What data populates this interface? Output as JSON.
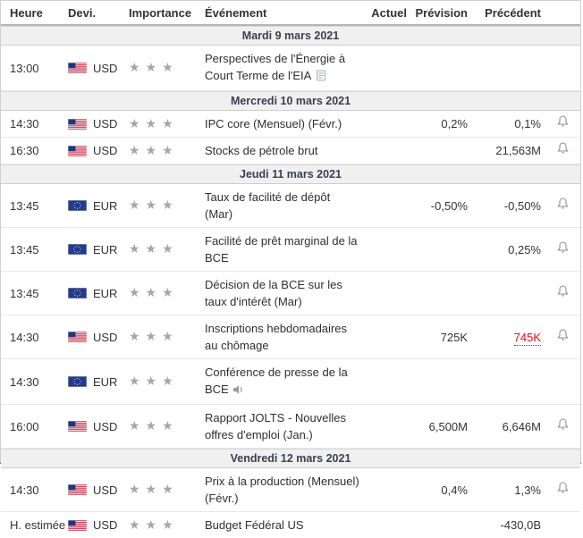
{
  "header": {
    "columns": [
      "Heure",
      "Devi.",
      "Importance",
      "Événement",
      "Actuel",
      "Prévision",
      "Précédent"
    ]
  },
  "colors": {
    "date_row_bg": "#f0f0f0",
    "date_text": "#39404f",
    "star": "#a6a6a6",
    "negative_red": "#dd1111",
    "bell": "#8f8f8f",
    "value_text": "#333333"
  },
  "sections": [
    {
      "date": "Mardi 9 mars 2021",
      "rows": [
        {
          "time": "13:00",
          "flag": "us",
          "currency": "USD",
          "stars": 3,
          "event": "Perspectives de l'Énergie à Court Terme de l'EIA",
          "event_icon": "report",
          "actual": "",
          "forecast": "",
          "previous": "",
          "previous_red": false,
          "bell": false
        }
      ]
    },
    {
      "date": "Mercredi 10 mars 2021",
      "rows": [
        {
          "time": "14:30",
          "flag": "us",
          "currency": "USD",
          "stars": 3,
          "event": "IPC core (Mensuel) (Févr.)",
          "event_icon": "",
          "actual": "",
          "forecast": "0,2%",
          "previous": "0,1%",
          "previous_red": false,
          "bell": true
        },
        {
          "time": "16:30",
          "flag": "us",
          "currency": "USD",
          "stars": 3,
          "event": "Stocks de pétrole brut",
          "event_icon": "",
          "actual": "",
          "forecast": "",
          "previous": "21,563M",
          "previous_red": false,
          "bell": true
        }
      ]
    },
    {
      "date": "Jeudi 11 mars 2021",
      "rows": [
        {
          "time": "13:45",
          "flag": "eu",
          "currency": "EUR",
          "stars": 3,
          "event": "Taux de facilité de dépôt (Mar)",
          "event_icon": "",
          "actual": "",
          "forecast": "-0,50%",
          "previous": "-0,50%",
          "previous_red": false,
          "bell": true
        },
        {
          "time": "13:45",
          "flag": "eu",
          "currency": "EUR",
          "stars": 3,
          "event": "Facilité de prêt marginal de la BCE",
          "event_icon": "",
          "actual": "",
          "forecast": "",
          "previous": "0,25%",
          "previous_red": false,
          "bell": true
        },
        {
          "time": "13:45",
          "flag": "eu",
          "currency": "EUR",
          "stars": 3,
          "event": "Décision de la BCE sur les taux d'intérêt (Mar)",
          "event_icon": "",
          "actual": "",
          "forecast": "",
          "previous": "",
          "previous_red": false,
          "bell": true
        },
        {
          "time": "14:30",
          "flag": "us",
          "currency": "USD",
          "stars": 3,
          "event": "Inscriptions hebdomadaires au chômage",
          "event_icon": "",
          "actual": "",
          "forecast": "725K",
          "previous": "745K",
          "previous_red": true,
          "bell": true
        },
        {
          "time": "14:30",
          "flag": "eu",
          "currency": "EUR",
          "stars": 3,
          "event": "Conférence de presse de la BCE",
          "event_icon": "speaker",
          "actual": "",
          "forecast": "",
          "previous": "",
          "previous_red": false,
          "bell": false
        },
        {
          "time": "16:00",
          "flag": "us",
          "currency": "USD",
          "stars": 3,
          "event": "Rapport JOLTS - Nouvelles offres d'emploi (Jan.)",
          "event_icon": "",
          "actual": "",
          "forecast": "6,500M",
          "previous": "6,646M",
          "previous_red": false,
          "bell": true
        }
      ]
    },
    {
      "date": "Vendredi 12 mars 2021",
      "rows": [
        {
          "time": "14:30",
          "flag": "us",
          "currency": "USD",
          "stars": 3,
          "event": "Prix à la production (Mensuel) (Févr.)",
          "event_icon": "",
          "actual": "",
          "forecast": "0,4%",
          "previous": "1,3%",
          "previous_red": false,
          "bell": true
        },
        {
          "time": "H. estimée",
          "flag": "us",
          "currency": "USD",
          "stars": 3,
          "event": "Budget Fédéral US",
          "event_icon": "",
          "actual": "",
          "forecast": "",
          "previous": "-430,0B",
          "previous_red": false,
          "bell": false
        }
      ]
    }
  ]
}
